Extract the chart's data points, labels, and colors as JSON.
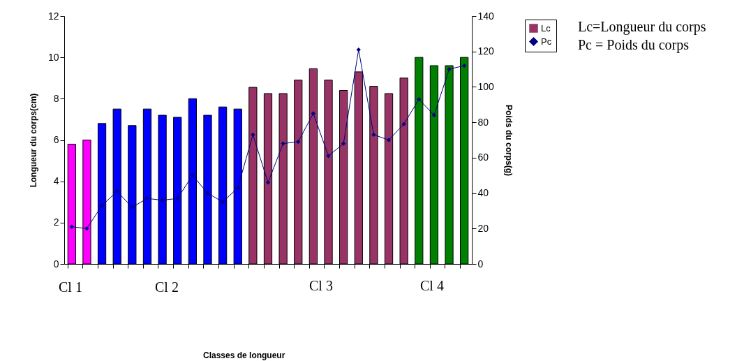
{
  "chart_data": {
    "type": "bar",
    "ylabel": "Longueur du corps(cm)",
    "y2label": "Poids du corps(g)",
    "categories": [
      null,
      null,
      null,
      null,
      null,
      null,
      null,
      null,
      null,
      null,
      null,
      null,
      null,
      null,
      null,
      null,
      null,
      null,
      null,
      null,
      null,
      null,
      null,
      null,
      null,
      null,
      null
    ],
    "series": [
      {
        "name": "Lc",
        "color": "#993366",
        "colors": [
          "#ff00ff",
          "#ff00ff",
          "#0000ff",
          "#0000ff",
          "#0000ff",
          "#0000ff",
          "#0000ff",
          "#0000ff",
          "#0000ff",
          "#0000ff",
          "#0000ff",
          "#0000ff",
          "#993366",
          "#993366",
          "#993366",
          "#993366",
          "#993366",
          "#993366",
          "#993366",
          "#993366",
          "#993366",
          "#993366",
          "#993366",
          "#008000",
          "#008000",
          "#008000",
          "#008000"
        ],
        "values": [
          5.8,
          6.0,
          6.8,
          7.5,
          6.7,
          7.5,
          7.2,
          7.1,
          8.0,
          7.2,
          7.6,
          7.5,
          8.55,
          8.25,
          8.25,
          8.9,
          9.45,
          8.9,
          8.4,
          9.3,
          8.6,
          8.25,
          9.0,
          10.0,
          9.6,
          9.6,
          10.0
        ]
      },
      {
        "name": "Pc",
        "type": "line",
        "axis": "y2",
        "color": "#000080",
        "values": [
          21,
          20,
          33,
          41,
          32,
          37,
          36,
          37,
          50,
          40,
          35,
          43,
          73,
          46,
          68,
          69,
          85,
          61,
          68,
          121,
          73,
          70,
          79,
          93,
          84,
          110,
          112
        ]
      }
    ],
    "ylim": [
      0,
      12
    ],
    "yticks": [
      0,
      2,
      4,
      6,
      8,
      10,
      12
    ],
    "y2lim": [
      0,
      140
    ],
    "y2ticks": [
      0,
      20,
      40,
      60,
      80,
      100,
      120,
      140
    ],
    "grid": false,
    "legend": "top right",
    "marker": "diamond",
    "line_style": "solid",
    "annotations": [
      "Lc=Longueur du corps",
      "Pc = Poids du corps",
      "Cl 1",
      "Cl 2",
      "Cl 3",
      "Cl 4",
      "Classes de longueur"
    ]
  }
}
